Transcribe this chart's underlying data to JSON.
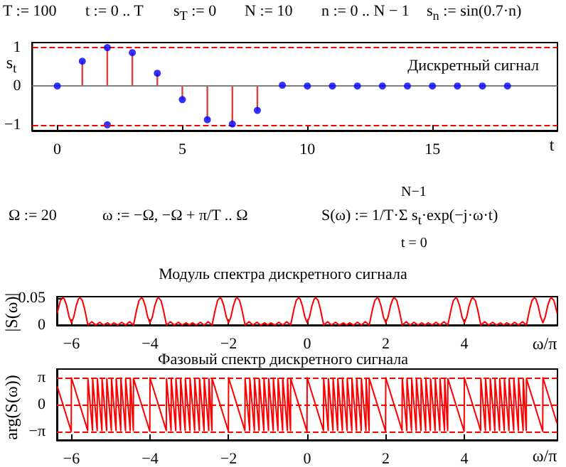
{
  "chart_data": [
    {
      "type": "lollipop",
      "title": "Дискретный сигнал",
      "xlabel": "t",
      "ylabel": "s$_{t}$",
      "annotations": [
        "T := 100",
        "t := 0 .. T",
        "s$_{T}$ := 0",
        "N := 10",
        "n := 0 .. N − 1",
        "s$_{n}$ := sin(0.7·n)"
      ],
      "x": [
        0,
        1,
        2,
        3,
        4,
        5,
        6,
        7,
        8,
        9,
        10,
        11,
        12,
        13,
        14,
        15,
        16,
        17,
        18
      ],
      "series": [
        {
          "color": "#0000ff",
          "values": [
            0,
            0.64,
            0.99,
            0.86,
            0.33,
            -0.35,
            -0.87,
            -0.98,
            -0.63,
            0.02,
            0,
            0,
            0,
            0,
            0,
            0,
            0,
            0,
            0
          ]
        },
        {
          "type": "scatter",
          "color": "#0000ff",
          "x": [
            2
          ],
          "values": [
            -1
          ]
        }
      ],
      "xlim": [
        -1,
        20
      ],
      "ylim": [
        -1.15,
        1.12
      ],
      "xticks": [
        0,
        5,
        10,
        15
      ],
      "yticks": [
        -1,
        0,
        1
      ],
      "ref_lines": [
        {
          "axis": "y",
          "value": 1,
          "color": "#ff0000",
          "line_style": "dashed"
        },
        {
          "axis": "y",
          "value": -1,
          "color": "#ff0000",
          "line_style": "dashed"
        },
        {
          "axis": "y",
          "value": 0,
          "color": "#808080",
          "line_style": "solid"
        }
      ],
      "marker": "circle"
    },
    {
      "type": "line",
      "title": "Модуль спектра дискретного сигнала",
      "xlabel": "ω/π",
      "ylabel": "|S(ω)|",
      "annotations": [
        "Ω := 20",
        "ω := −Ω, −Ω + π/T .. Ω",
        "S(ω) := 1/T·Σ s$_{t}$·exp(−j·ω·t)",
        "N−1",
        "t = 0"
      ],
      "x": [
        -6.36,
        -6.34,
        -6.28,
        -6.22,
        -6.18,
        -6.12,
        -6.06,
        -6,
        -5.94,
        -5.88,
        -5.82,
        -5.78,
        -5.72,
        -5.66,
        -5.58,
        -5.48,
        -5.38,
        -5.28,
        -5.18,
        -5.08,
        -5,
        -4.92,
        -4.82,
        -4.72,
        -4.62,
        -4.52,
        -4.42,
        -4.34,
        -4.28,
        -4.22,
        -4.18,
        -4.12,
        -4.06,
        -4,
        -3.94,
        -3.88,
        -3.82,
        -3.78,
        -3.72,
        -3.66,
        -3.58,
        -3.48,
        -3.38,
        -3.28,
        -3.18,
        -3.08,
        -3,
        -2.92,
        -2.82,
        -2.72,
        -2.62,
        -2.52,
        -2.42,
        -2.34,
        -2.28,
        -2.22,
        -2.18,
        -2.12,
        -2.06,
        -2,
        -1.94,
        -1.88,
        -1.82,
        -1.78,
        -1.72,
        -1.66,
        -1.58,
        -1.48,
        -1.38,
        -1.28,
        -1.18,
        -1.08,
        -1,
        -0.92,
        -0.82,
        -0.72,
        -0.62,
        -0.52,
        -0.42,
        -0.34,
        -0.28,
        -0.22,
        -0.18,
        -0.12,
        -0.06,
        0,
        0.06,
        0.12,
        0.18,
        0.22,
        0.28,
        0.34,
        0.42,
        0.52,
        0.62,
        0.72,
        0.82,
        0.92,
        1,
        1.08,
        1.18,
        1.28,
        1.38,
        1.48,
        1.58,
        1.66,
        1.72,
        1.78,
        1.82,
        1.88,
        1.94,
        2,
        2.06,
        2.12,
        2.18,
        2.22,
        2.28,
        2.34,
        2.42,
        2.52,
        2.62,
        2.72,
        2.82,
        2.92,
        3,
        3.08,
        3.18,
        3.28,
        3.38,
        3.48,
        3.58,
        3.66,
        3.72,
        3.78,
        3.82,
        3.88,
        3.94,
        4,
        4.06,
        4.12,
        4.18,
        4.22,
        4.28,
        4.34,
        4.42,
        4.52,
        4.62,
        4.72,
        4.82,
        4.92,
        5,
        5.08,
        5.18,
        5.28,
        5.38,
        5.48,
        5.58,
        5.66,
        5.72,
        5.78,
        5.82,
        5.88,
        5.94,
        6,
        6.06,
        6.12,
        6.18,
        6.22,
        6.28,
        6.34,
        6.36
      ],
      "series": [
        {
          "color": "#ff0000",
          "values": [
            0.022,
            0.028,
            0.045,
            0.05,
            0.048,
            0.035,
            0.015,
            0.004,
            0.015,
            0.035,
            0.048,
            0.05,
            0.045,
            0.028,
            0,
            0.006,
            0,
            0.005,
            0,
            0.004,
            0,
            0.004,
            0,
            0.005,
            0,
            0.006,
            0,
            0.028,
            0.045,
            0.05,
            0.048,
            0.035,
            0.015,
            0.004,
            0.015,
            0.035,
            0.048,
            0.05,
            0.045,
            0.028,
            0,
            0.006,
            0,
            0.005,
            0,
            0.004,
            0,
            0.004,
            0,
            0.005,
            0,
            0.006,
            0,
            0.028,
            0.045,
            0.05,
            0.048,
            0.035,
            0.015,
            0.004,
            0.015,
            0.035,
            0.048,
            0.05,
            0.045,
            0.028,
            0,
            0.006,
            0,
            0.005,
            0,
            0.004,
            0,
            0.004,
            0,
            0.005,
            0,
            0.006,
            0,
            0.028,
            0.045,
            0.05,
            0.048,
            0.035,
            0.015,
            0.004,
            0.015,
            0.035,
            0.048,
            0.05,
            0.045,
            0.028,
            0,
            0.006,
            0,
            0.005,
            0,
            0.004,
            0,
            0.004,
            0,
            0.005,
            0,
            0.006,
            0,
            0.028,
            0.045,
            0.05,
            0.048,
            0.035,
            0.015,
            0.004,
            0.015,
            0.035,
            0.048,
            0.05,
            0.045,
            0.028,
            0,
            0.006,
            0,
            0.005,
            0,
            0.004,
            0,
            0.004,
            0,
            0.005,
            0,
            0.006,
            0,
            0.028,
            0.045,
            0.05,
            0.048,
            0.035,
            0.015,
            0.004,
            0.015,
            0.035,
            0.048,
            0.05,
            0.045,
            0.028,
            0,
            0.006,
            0,
            0.005,
            0,
            0.004,
            0,
            0.004,
            0,
            0.005,
            0,
            0.006,
            0,
            0.028,
            0.045,
            0.05,
            0.048,
            0.035,
            0.015,
            0.004,
            0.015,
            0.035,
            0.048,
            0.05,
            0.045,
            0.028,
            0.022
          ]
        }
      ],
      "xlim": [
        -6.37,
        6.37
      ],
      "ylim": [
        0,
        0.052
      ],
      "xticks": [
        -6,
        -4,
        -2,
        0,
        2,
        4
      ],
      "yticks": [
        0,
        0.05
      ],
      "marker": "none",
      "line_style": "solid"
    },
    {
      "type": "line",
      "title": "Фазовый спектр дискретного сигнала",
      "xlabel": "ω/π",
      "ylabel": "arg(S(ω))",
      "x": [
        -6.36,
        -6.005,
        -6,
        -5.585,
        -5.58,
        -5.464,
        -5.46,
        -5.344,
        -5.34,
        -5.224,
        -5.22,
        -5.104,
        -5.1,
        -4.984,
        -4.98,
        -4.864,
        -4.86,
        -4.744,
        -4.74,
        -4.624,
        -4.62,
        -4.504,
        -4.5,
        -4.424,
        -4.42,
        -4.005,
        -4,
        -3.585,
        -3.58,
        -3.464,
        -3.46,
        -3.344,
        -3.34,
        -3.224,
        -3.22,
        -3.104,
        -3.1,
        -2.984,
        -2.98,
        -2.864,
        -2.86,
        -2.744,
        -2.74,
        -2.624,
        -2.62,
        -2.504,
        -2.5,
        -2.424,
        -2.42,
        -2.005,
        -2,
        -1.585,
        -1.58,
        -1.464,
        -1.46,
        -1.344,
        -1.34,
        -1.224,
        -1.22,
        -1.104,
        -1.1,
        -0.984,
        -0.98,
        -0.864,
        -0.86,
        -0.744,
        -0.74,
        -0.624,
        -0.62,
        -0.504,
        -0.5,
        -0.424,
        -0.42,
        -0.005,
        0,
        0.415,
        0.42,
        0.536,
        0.54,
        0.656,
        0.66,
        0.776,
        0.78,
        0.896,
        0.9,
        1.016,
        1.02,
        1.136,
        1.14,
        1.256,
        1.26,
        1.376,
        1.38,
        1.496,
        1.5,
        1.576,
        1.58,
        1.995,
        2,
        2.415,
        2.42,
        2.536,
        2.54,
        2.656,
        2.66,
        2.776,
        2.78,
        2.896,
        2.9,
        3.016,
        3.02,
        3.136,
        3.14,
        3.256,
        3.26,
        3.376,
        3.38,
        3.496,
        3.5,
        3.576,
        3.58,
        3.995,
        4,
        4.415,
        4.42,
        4.536,
        4.54,
        4.656,
        4.66,
        4.776,
        4.78,
        4.896,
        4.9,
        5.016,
        5.02,
        5.136,
        5.14,
        5.256,
        5.26,
        5.376,
        5.38,
        5.496,
        5.5,
        5.576,
        5.58,
        5.995,
        6,
        6.36
      ],
      "series": [
        {
          "color": "#ff0000",
          "values": [
            2.1,
            -3.1,
            3.1,
            -3,
            3,
            -3,
            3,
            -3,
            3,
            -3,
            3,
            -3,
            3,
            -3,
            3,
            -3,
            3,
            -3,
            3,
            -3,
            3,
            -3,
            3,
            -3,
            3,
            -3.1,
            3.1,
            -3,
            3,
            -3,
            3,
            -3,
            3,
            -3,
            3,
            -3,
            3,
            -3,
            3,
            -3,
            3,
            -3,
            3,
            -3,
            3,
            -3,
            3,
            -3,
            3,
            -3.1,
            3.1,
            -3,
            3,
            -3,
            3,
            -3,
            3,
            -3,
            3,
            -3,
            3,
            -3,
            3,
            -3,
            3,
            -3,
            3,
            -3,
            3,
            -3,
            3,
            -3,
            3,
            -3.1,
            3.1,
            -3,
            3,
            -3,
            3,
            -3,
            3,
            -3,
            3,
            -3,
            3,
            -3,
            3,
            -3,
            3,
            -3,
            3,
            -3,
            3,
            -3,
            3,
            -3,
            3,
            -3.1,
            3.1,
            -3,
            3,
            -3,
            3,
            -3,
            3,
            -3,
            3,
            -3,
            3,
            -3,
            3,
            -3,
            3,
            -3,
            3,
            -3,
            3,
            -3,
            3,
            -3,
            3,
            -3.1,
            3.1,
            -3,
            3,
            -3,
            3,
            -3,
            3,
            -3,
            3,
            -3,
            3,
            -3,
            3,
            -3,
            3,
            -3,
            3,
            -3,
            3,
            -3,
            3,
            -3,
            3,
            -3.1,
            3.1,
            -2.2
          ]
        }
      ],
      "xlim": [
        -6.37,
        6.37
      ],
      "ylim": [
        -4.1,
        4.1
      ],
      "xticks": [
        -6,
        -4,
        -2,
        0,
        2,
        4
      ],
      "yticks": [
        {
          "value": -3.1416,
          "label": "−π"
        },
        0,
        {
          "value": 3.1416,
          "label": "π"
        }
      ],
      "ref_lines": [
        {
          "axis": "y",
          "value": 3.1416,
          "color": "#ff0000",
          "line_style": "dashed"
        },
        {
          "axis": "y",
          "value": 0,
          "color": "#ff0000",
          "line_style": "dashed"
        },
        {
          "axis": "y",
          "value": -3.1416,
          "color": "#ff0000",
          "line_style": "dashed"
        }
      ],
      "marker": "none",
      "line_style": "solid"
    }
  ]
}
